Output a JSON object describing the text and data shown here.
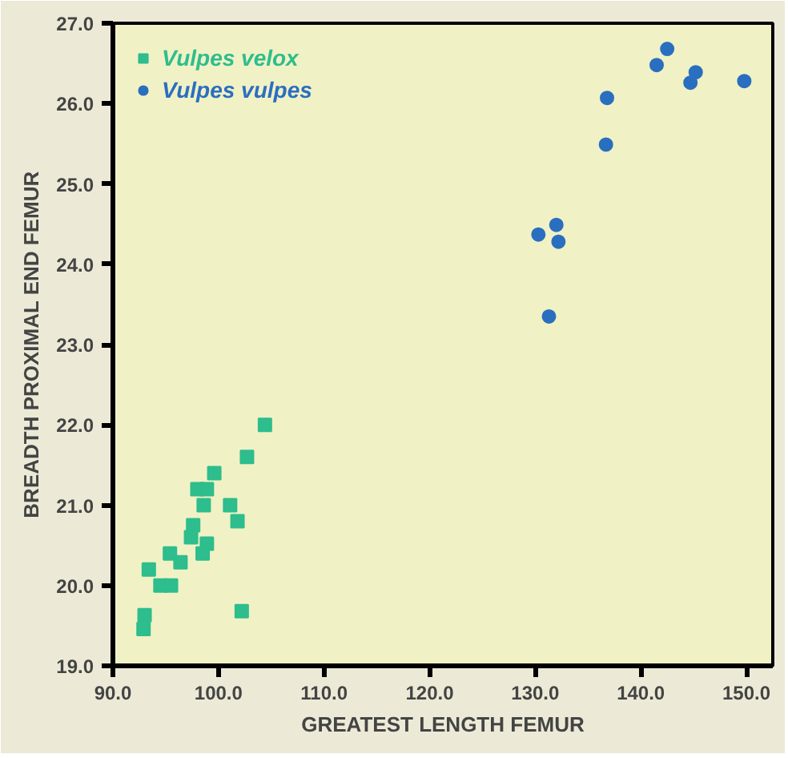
{
  "chart_data": {
    "type": "scatter",
    "xlabel": "GREATEST LENGTH FEMUR",
    "ylabel": "BREADTH PROXIMAL END FEMUR",
    "xlim": [
      90,
      152.5
    ],
    "ylim": [
      19,
      27
    ],
    "xticks": [
      {
        "value": 90,
        "label": "90.0"
      },
      {
        "value": 100,
        "label": "100.0"
      },
      {
        "value": 110,
        "label": "110.0"
      },
      {
        "value": 120,
        "label": "120.0"
      },
      {
        "value": 130,
        "label": "130.0"
      },
      {
        "value": 140,
        "label": "140.0"
      },
      {
        "value": 150,
        "label": "150.0"
      }
    ],
    "yticks": [
      {
        "value": 19,
        "label": "19.0"
      },
      {
        "value": 20,
        "label": "20.0"
      },
      {
        "value": 21,
        "label": "21.0"
      },
      {
        "value": 22,
        "label": "22.0"
      },
      {
        "value": 23,
        "label": "23.0"
      },
      {
        "value": 24,
        "label": "24.0"
      },
      {
        "value": 25,
        "label": "25.0"
      },
      {
        "value": 26,
        "label": "26.0"
      },
      {
        "value": 27,
        "label": "27.0"
      }
    ],
    "grid": false,
    "legend": "top left",
    "series": [
      {
        "name": "Vulpes velox",
        "color": "#2ebd8c",
        "marker": "square",
        "x": [
          92.9,
          93.0,
          93.4,
          94.5,
          95.5,
          95.4,
          96.4,
          97.4,
          97.6,
          98.0,
          98.9,
          98.6,
          98.5,
          98.9,
          99.6,
          101.1,
          101.8,
          102.2,
          102.7,
          104.4
        ],
        "values": [
          19.46,
          19.63,
          20.2,
          20.0,
          20.0,
          20.4,
          20.29,
          20.6,
          20.75,
          21.2,
          21.2,
          21.0,
          20.4,
          20.52,
          21.4,
          21.0,
          20.8,
          19.68,
          21.6,
          22.0
        ]
      },
      {
        "name": "Vulpes vulpes",
        "color": "#2a6fbf",
        "marker": "circle",
        "x": [
          142.5,
          141.5,
          145.2,
          144.7,
          149.8,
          136.8,
          136.7,
          132.0,
          130.3,
          132.2,
          131.3
        ],
        "values": [
          26.68,
          26.48,
          26.39,
          26.26,
          26.28,
          26.07,
          25.49,
          24.49,
          24.37,
          24.28,
          23.35
        ]
      }
    ]
  }
}
